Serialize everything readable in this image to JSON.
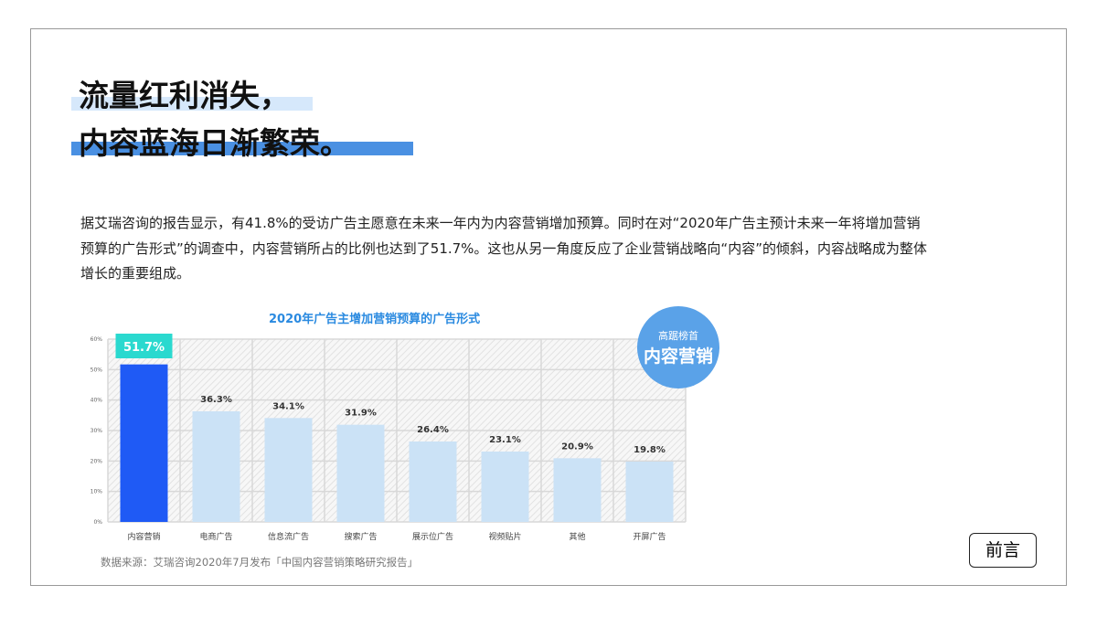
{
  "title": {
    "line1": "流量红利消失，",
    "line2": "内容蓝海日渐繁荣。"
  },
  "paragraph": "据艾瑞咨询的报告显示，有41.8%的受访广告主愿意在未来一年内为内容营销增加预算。同时在对“2020年广告主预计未来一年将增加营销预算的广告形式”的调查中，内容营销所占的比例也达到了51.7%。这也从另一角度反应了企业营销战略向“内容”的倾斜，内容战略成为整体增长的重要组成。",
  "badge": {
    "line1": "高踞榜首",
    "line2": "内容营销"
  },
  "source": "数据来源：艾瑞咨询2020年7月发布「中国内容营销策略研究报告」",
  "nav_button": "前言",
  "colors": {
    "highlight_bar": "#1f5af5",
    "other_bars": "#cbe2f6",
    "label_box": "#2ad9cf",
    "badge": "#5aa2e8",
    "title_accent": "#4a90e2"
  },
  "chart_data": {
    "type": "bar",
    "title": "2020年广告主增加营销预算的广告形式",
    "categories": [
      "内容营销",
      "电商广告",
      "信息流广告",
      "搜索广告",
      "展示位广告",
      "视频贴片",
      "其他",
      "开屏广告"
    ],
    "values": [
      51.7,
      36.3,
      34.1,
      31.9,
      26.4,
      23.1,
      20.9,
      19.8
    ],
    "labels": [
      "51.7%",
      "36.3%",
      "34.1%",
      "31.9%",
      "26.4%",
      "23.1%",
      "20.9%",
      "19.8%"
    ],
    "yticks": [
      "0%",
      "10%",
      "20%",
      "30%",
      "40%",
      "50%",
      "60%"
    ],
    "ylim": [
      0,
      60
    ],
    "grid": true
  }
}
